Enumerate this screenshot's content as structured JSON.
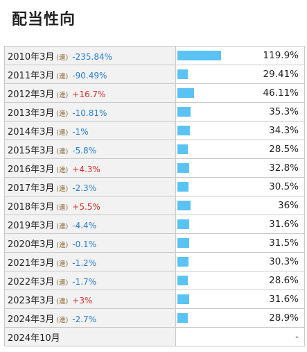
{
  "title": "配当性向",
  "colors": {
    "bar": "#5bc3f4",
    "negative_change": "#2a7fd0",
    "positive_change": "#d0302f",
    "label_bg": "#f2f2f2"
  },
  "rows": [
    {
      "period": "2010年3月",
      "consol": "(連)",
      "change": "-235.84%",
      "direction": "neg",
      "value": "119.9%",
      "ratio": 119.9
    },
    {
      "period": "2011年3月",
      "consol": "(連)",
      "change": "-90.49%",
      "direction": "neg",
      "value": "29.41%",
      "ratio": 29.41
    },
    {
      "period": "2012年3月",
      "consol": "(連)",
      "change": "+16.7%",
      "direction": "pos",
      "value": "46.11%",
      "ratio": 46.11
    },
    {
      "period": "2013年3月",
      "consol": "(連)",
      "change": "-10.81%",
      "direction": "neg",
      "value": "35.3%",
      "ratio": 35.3
    },
    {
      "period": "2014年3月",
      "consol": "(連)",
      "change": "-1%",
      "direction": "neg",
      "value": "34.3%",
      "ratio": 34.3
    },
    {
      "period": "2015年3月",
      "consol": "(連)",
      "change": "-5.8%",
      "direction": "neg",
      "value": "28.5%",
      "ratio": 28.5
    },
    {
      "period": "2016年3月",
      "consol": "(連)",
      "change": "+4.3%",
      "direction": "pos",
      "value": "32.8%",
      "ratio": 32.8
    },
    {
      "period": "2017年3月",
      "consol": "(連)",
      "change": "-2.3%",
      "direction": "neg",
      "value": "30.5%",
      "ratio": 30.5
    },
    {
      "period": "2018年3月",
      "consol": "(連)",
      "change": "+5.5%",
      "direction": "pos",
      "value": "36%",
      "ratio": 36
    },
    {
      "period": "2019年3月",
      "consol": "(連)",
      "change": "-4.4%",
      "direction": "neg",
      "value": "31.6%",
      "ratio": 31.6
    },
    {
      "period": "2020年3月",
      "consol": "(連)",
      "change": "-0.1%",
      "direction": "neg",
      "value": "31.5%",
      "ratio": 31.5
    },
    {
      "period": "2021年3月",
      "consol": "(連)",
      "change": "-1.2%",
      "direction": "neg",
      "value": "30.3%",
      "ratio": 30.3
    },
    {
      "period": "2022年3月",
      "consol": "(連)",
      "change": "-1.7%",
      "direction": "neg",
      "value": "28.6%",
      "ratio": 28.6
    },
    {
      "period": "2023年3月",
      "consol": "(連)",
      "change": "+3%",
      "direction": "pos",
      "value": "31.6%",
      "ratio": 31.6
    },
    {
      "period": "2024年3月",
      "consol": "(連)",
      "change": "-2.7%",
      "direction": "neg",
      "value": "28.9%",
      "ratio": 28.9
    },
    {
      "period": "2024年10月",
      "consol": "",
      "change": "",
      "direction": "",
      "value": "-",
      "ratio": 0
    }
  ]
}
